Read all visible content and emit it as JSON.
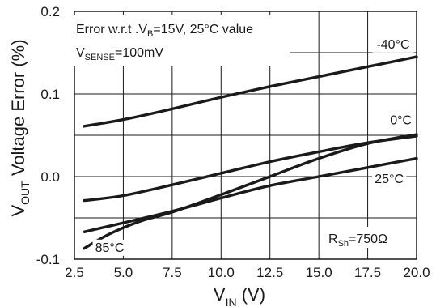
{
  "chart_data": {
    "type": "line",
    "xlim": [
      2.5,
      20.0
    ],
    "ylim": [
      -0.1,
      0.2
    ],
    "x_ticks": [
      "2.5",
      "5.0",
      "7.5",
      "10.0",
      "12.5",
      "15.0",
      "17.5",
      "20.0"
    ],
    "y_ticks": [
      "-0.1",
      "0.0",
      "0.1",
      "0.2"
    ],
    "grid": true,
    "xlabel": {
      "main": "V",
      "sub": "IN",
      "unit": " (V)"
    },
    "ylabel": {
      "main": "V",
      "sub": "OUT",
      "rest": " Voltage Error (%)"
    },
    "annotations": {
      "line1": {
        "pre": "Error w.r.t .V",
        "sub": "B",
        "post": "=15V, 25°C value"
      },
      "line2": {
        "pre": "V",
        "sub": "SENSE",
        "post": "=100mV"
      },
      "rsh": {
        "pre": "R",
        "sub": "Sh",
        "post": "=750Ω"
      }
    },
    "series": [
      {
        "name": "-40°C",
        "x": [
          3,
          5,
          7.5,
          10,
          12.5,
          15,
          17.5,
          20
        ],
        "y": [
          0.061,
          0.069,
          0.082,
          0.096,
          0.109,
          0.121,
          0.133,
          0.145
        ]
      },
      {
        "name": "0°C",
        "x": [
          3,
          5,
          7.5,
          10,
          12.5,
          15,
          17.5,
          20
        ],
        "y": [
          -0.029,
          -0.023,
          -0.01,
          0.004,
          0.018,
          0.03,
          0.041,
          0.049
        ]
      },
      {
        "name": "25°C",
        "x": [
          3,
          5,
          7.5,
          10,
          12.5,
          15,
          17.5,
          20
        ],
        "y": [
          -0.067,
          -0.056,
          -0.042,
          -0.026,
          -0.011,
          0.0,
          0.011,
          0.022
        ]
      },
      {
        "name": "85°C",
        "x": [
          3,
          4,
          5,
          6,
          7.5,
          10,
          12.5,
          15,
          17.5,
          20
        ],
        "y": [
          -0.087,
          -0.073,
          -0.062,
          -0.053,
          -0.043,
          -0.022,
          0.0,
          0.022,
          0.04,
          0.051
        ]
      }
    ],
    "series_label_anchors": {
      "-40°C": {
        "x": 18.8,
        "y": 0.155
      },
      "0°C": {
        "x": 19.2,
        "y": 0.063
      },
      "25°C": {
        "x": 18.6,
        "y": -0.008
      },
      "85°C": {
        "x": 4.3,
        "y": -0.091
      }
    },
    "colors": {
      "line": "#1a1a1a",
      "grid": "#1a1a1a",
      "background": "#ffffff"
    }
  }
}
